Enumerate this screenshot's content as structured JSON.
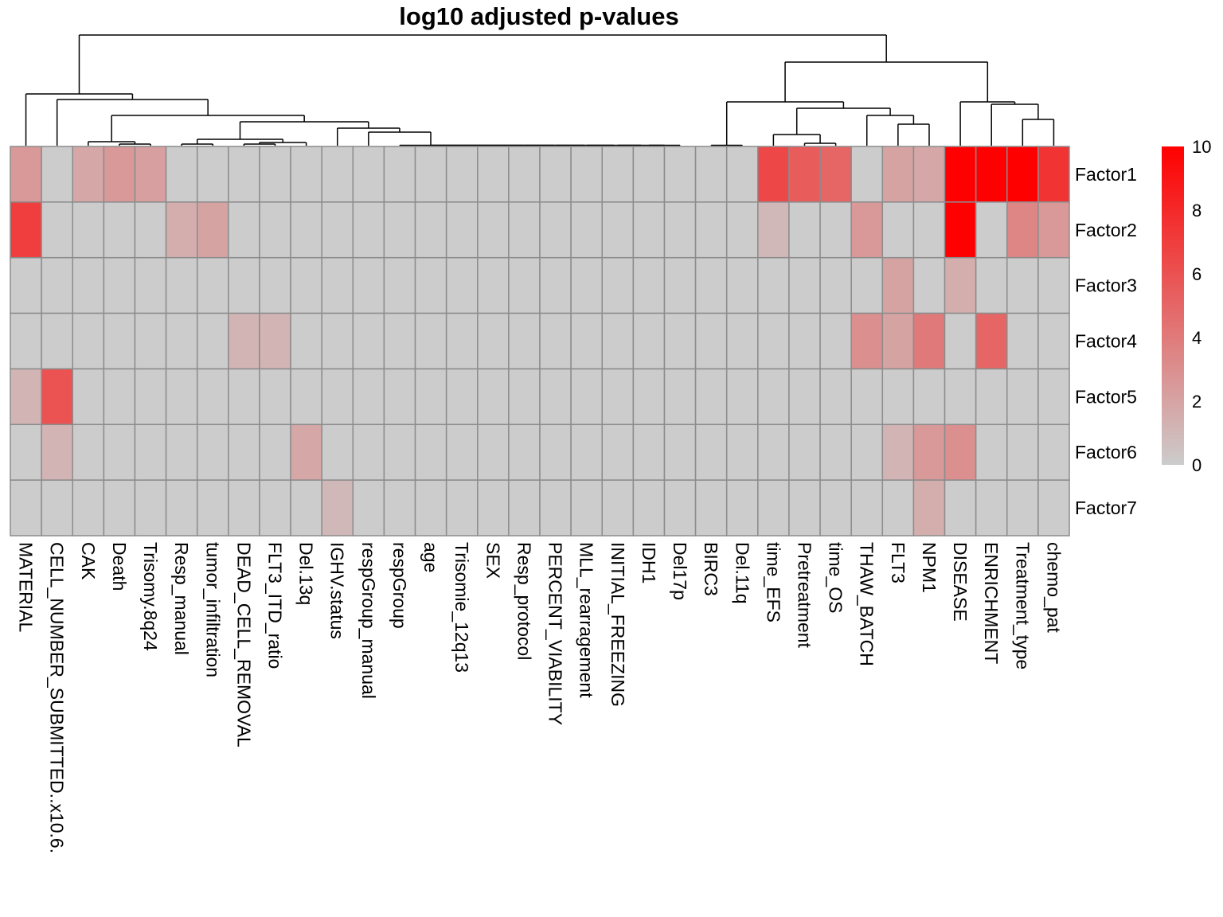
{
  "chart_data": {
    "type": "heatmap",
    "title": "log10 adjusted p-values",
    "xlabel": "",
    "ylabel": "",
    "columns": [
      "MATERIAL",
      "CELL_NUMBER_SUBMITTED..x10.6.",
      "CAK",
      "Death",
      "Trisomy.8q24",
      "Resp_manual",
      "tumor_infiltration",
      "DEAD_CELL_REMOVAL",
      "FLT3_ITD_ratio",
      "Del.13q",
      "IGHV.status",
      "respGroup_manual",
      "respGroup",
      "age",
      "Trisomie_12q13",
      "SEX",
      "Resp_protocol",
      "PERCENT_VIABILITY",
      "MLL_rearragement",
      "INITIAL_FREEZING",
      "IDH1",
      "Del17p",
      "BIRC3",
      "Del.11q",
      "time_EFS",
      "Pretreatment",
      "time_OS",
      "THAW_BATCH",
      "FLT3",
      "NPM1",
      "DISEASE",
      "ENRICHMENT",
      "Treatment_type",
      "chemo_pat"
    ],
    "rows": [
      "Factor1",
      "Factor2",
      "Factor3",
      "Factor4",
      "Factor5",
      "Factor6",
      "Factor7"
    ],
    "values": [
      [
        2.5,
        0,
        1.8,
        2.5,
        2.2,
        0,
        0,
        0,
        0,
        0,
        0,
        0,
        0,
        0,
        0,
        0,
        0,
        0,
        0,
        0,
        0,
        0,
        0,
        0,
        6.5,
        5.5,
        5,
        0,
        2,
        1.8,
        10,
        10,
        10,
        7.5
      ],
      [
        7,
        0,
        0,
        0,
        0,
        1.5,
        2,
        0,
        0,
        0,
        0,
        0,
        0,
        0,
        0,
        0,
        0,
        0,
        0,
        0,
        0,
        0,
        0,
        0,
        1,
        0,
        0,
        2.5,
        0,
        0,
        10,
        0,
        3.5,
        2.5
      ],
      [
        0,
        0,
        0,
        0,
        0,
        0,
        0,
        0,
        0,
        0,
        0,
        0,
        0,
        0,
        0,
        0,
        0,
        0,
        0,
        0,
        0,
        0,
        0,
        0,
        0,
        0,
        0,
        0,
        2,
        0,
        1.5,
        0,
        0,
        0
      ],
      [
        0,
        0,
        0,
        0,
        0,
        0,
        0,
        1.2,
        1.2,
        0,
        0,
        0,
        0,
        0,
        0,
        0,
        0,
        0,
        0,
        0,
        0,
        0,
        0,
        0,
        0,
        0,
        0,
        3,
        2,
        4,
        0,
        5,
        0,
        0
      ],
      [
        1.2,
        6,
        0,
        0,
        0,
        0,
        0,
        0,
        0,
        0,
        0,
        0,
        0,
        0,
        0,
        0,
        0,
        0,
        0,
        0,
        0,
        0,
        0,
        0,
        0,
        0,
        0,
        0,
        0,
        0,
        0,
        0,
        0,
        0
      ],
      [
        0,
        1.2,
        0,
        0,
        0,
        0,
        0,
        0,
        0,
        1.8,
        0,
        0,
        0,
        0,
        0,
        0,
        0,
        0,
        0,
        0,
        0,
        0,
        0,
        0,
        0,
        0,
        0,
        0,
        1.2,
        2.5,
        3,
        0,
        0,
        0
      ],
      [
        0,
        0,
        0,
        0,
        0,
        0,
        0,
        0,
        0,
        0,
        1,
        0,
        0,
        0,
        0,
        0,
        0,
        0,
        0,
        0,
        0,
        0,
        0,
        0,
        0,
        0,
        0,
        0,
        0,
        1.5,
        0,
        0,
        0,
        0
      ]
    ],
    "color_scale": {
      "min": 0,
      "max": 10,
      "low": "#cccccc",
      "high": "#ff0000"
    },
    "legend": {
      "ticks": [
        0,
        2,
        4,
        6,
        8,
        10
      ],
      "position": "right"
    },
    "grid": true
  }
}
